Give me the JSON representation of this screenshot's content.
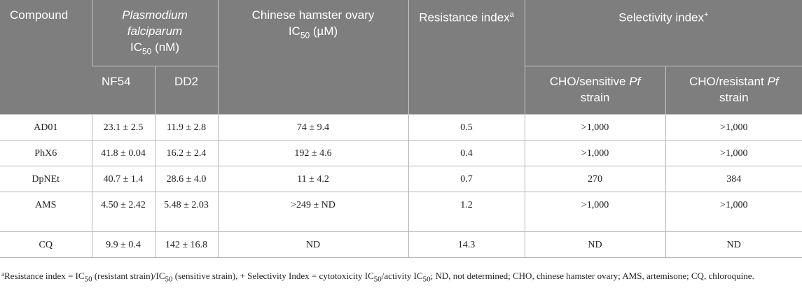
{
  "table": {
    "headers": {
      "compound": "Compound",
      "pf_species": "Plasmodium falciparum",
      "pf_ic_prefix": "IC",
      "pf_ic_sub": "50",
      "pf_ic_unit": " (nM)",
      "cho_title": "Chinese hamster ovary",
      "cho_ic_prefix": "IC",
      "cho_ic_sub": "50",
      "cho_ic_unit": " (µM)",
      "resistance_label": "Resistance index",
      "resistance_sup": "a",
      "selectivity_label": "Selectivity index",
      "selectivity_sup": "+",
      "nf54": "NF54",
      "dd2": "DD2",
      "cho_sensitive_pre": "CHO/sensitive ",
      "cho_sensitive_pf": "Pf",
      "cho_sensitive_post": " strain",
      "cho_resistant_pre": "CHO/resistant ",
      "cho_resistant_pf": "Pf",
      "cho_resistant_post": " strain"
    },
    "rows": [
      {
        "compound": "AD01",
        "nf54": "23.1 ± 2.5",
        "dd2": "11.9 ± 2.8",
        "cho": "74 ± 9.4",
        "resistance": "0.5",
        "sel_sensitive": ">1,000",
        "sel_resistant": ">1,000"
      },
      {
        "compound": "PhX6",
        "nf54": "41.8 ± 0.04",
        "dd2": "16.2 ± 2.4",
        "cho": "192 ± 4.6",
        "resistance": "0.4",
        "sel_sensitive": ">1,000",
        "sel_resistant": ">1,000"
      },
      {
        "compound": "DpNEt",
        "nf54": "40.7 ± 1.4",
        "dd2": "28.6 ± 4.0",
        "cho": "11 ± 4.2",
        "resistance": "0.7",
        "sel_sensitive": "270",
        "sel_resistant": "384"
      },
      {
        "compound": "AMS",
        "nf54": "4.50 ± 2.42",
        "dd2": "5.48 ± 2.03",
        "cho": ">249 ± ND",
        "resistance": "1.2",
        "sel_sensitive": ">1,000",
        "sel_resistant": ">1,000"
      },
      {
        "compound": "CQ",
        "nf54": "9.9 ± 0.4",
        "dd2": "142 ± 16.8",
        "cho": "ND",
        "resistance": "14.3",
        "sel_sensitive": "ND",
        "sel_resistant": "ND"
      }
    ]
  },
  "footnote": {
    "sup_a": "a",
    "t1": "Resistance index = IC",
    "s1": "50",
    "t2": " (resistant strain)/IC",
    "s2": "50",
    "t3": " (sensitive strain), + Selectivity Index = cytotoxicity IC",
    "s3": "50",
    "t4": "/activity IC",
    "s4": "50",
    "t5": "; ND, not determined; CHO, chinese hamster ovary; AMS, artemisone; CQ, chloroquine."
  },
  "colors": {
    "header_bg": "#7e7e7e",
    "header_text": "#ffffff",
    "grid_line": "#b5b5b5",
    "body_text": "#222222"
  }
}
